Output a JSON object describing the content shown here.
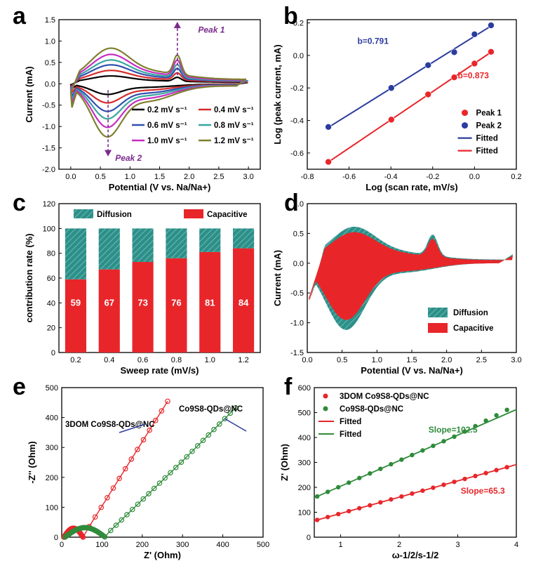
{
  "colors": {
    "red": "#e8262a",
    "blue": "#2b3c9e",
    "teal": "#2f8f88",
    "green": "#2e8b3a",
    "purple": "#7a2a8c",
    "olive": "#7f8030",
    "black": "#000000",
    "cyan": "#3aa6a0",
    "magenta": "#c72dc1",
    "darkred": "#d62c2c",
    "darkblue": "#3050b0"
  },
  "panels": {
    "a": "a",
    "b": "b",
    "c": "c",
    "d": "d",
    "e": "e",
    "f": "f"
  },
  "chart_data": [
    {
      "id": "a",
      "type": "line",
      "xlabel": "Potential (V vs. Na/Na+)",
      "ylabel": "Current (mA)",
      "xlim": [
        -0.2,
        3.2
      ],
      "ylim": [
        -2.0,
        1.5
      ],
      "xticks": [
        "0.0",
        "0.5",
        "1.0",
        "1.5",
        "2.0",
        "2.5",
        "3.0"
      ],
      "yticks": [
        "-2.0",
        "-1.5",
        "-1.0",
        "-0.5",
        "0.0",
        "0.5",
        "1.0",
        "1.5"
      ],
      "series": [
        {
          "name": "0.2 mV s⁻¹",
          "scale": 0.2,
          "color": "#000000"
        },
        {
          "name": "0.4 mV s⁻¹",
          "scale": 0.36,
          "color": "#d62c2c"
        },
        {
          "name": "0.6 mV s⁻¹",
          "scale": 0.52,
          "color": "#3050b0"
        },
        {
          "name": "0.8 mV s⁻¹",
          "scale": 0.66,
          "color": "#3aa6a0"
        },
        {
          "name": "1.0 mV s⁻¹",
          "scale": 0.82,
          "color": "#c72dc1"
        },
        {
          "name": "1.2 mV s⁻¹",
          "scale": 1.0,
          "color": "#7f8030"
        }
      ],
      "annotations": {
        "peak1": "Peak 1",
        "peak2": "Peak 2"
      }
    },
    {
      "id": "b",
      "type": "scatter",
      "xlabel": "Log (scan rate, mV/s)",
      "ylabel": "Log (peak current, mA)",
      "xlim": [
        -0.8,
        0.2
      ],
      "ylim": [
        -0.7,
        0.22
      ],
      "xticks": [
        "-0.8",
        "-0.6",
        "-0.4",
        "-0.2",
        "0.0",
        "0.2"
      ],
      "yticks": [
        "-0.6",
        "-0.4",
        "-0.2",
        "0.0",
        "0.2"
      ],
      "series": [
        {
          "name": "Peak 1",
          "x": [
            -0.699,
            -0.398,
            -0.222,
            -0.097,
            0.0,
            0.079
          ],
          "y": [
            -0.655,
            -0.395,
            -0.24,
            -0.135,
            -0.05,
            0.022
          ]
        },
        {
          "name": "Peak 2",
          "x": [
            -0.699,
            -0.398,
            -0.222,
            -0.097,
            0.0,
            0.079
          ],
          "y": [
            -0.44,
            -0.2,
            -0.06,
            0.02,
            0.13,
            0.185
          ]
        }
      ],
      "fitted": [
        {
          "name": "Fitted",
          "slope": 0.791,
          "series": "Peak 2"
        },
        {
          "name": "Fitted",
          "slope": 0.873,
          "series": "Peak 1"
        }
      ],
      "labels": {
        "b2": "b=0.791",
        "b1": "b=0.873"
      }
    },
    {
      "id": "c",
      "type": "bar",
      "xlabel": "Sweep rate (mV/s)",
      "ylabel": "contribution rate (%)",
      "ylim": [
        0,
        120
      ],
      "categories": [
        "0.2",
        "0.4",
        "0.6",
        "0.8",
        "1.0",
        "1.2"
      ],
      "yticks": [
        "0",
        "20",
        "40",
        "60",
        "80",
        "100",
        "120"
      ],
      "series": [
        {
          "name": "Capacitive",
          "values": [
            59,
            67,
            73,
            76,
            81,
            84
          ]
        },
        {
          "name": "Diffusion",
          "values": [
            41,
            33,
            27,
            24,
            19,
            16
          ]
        }
      ]
    },
    {
      "id": "d",
      "type": "area",
      "xlabel": "Potential (V vs. Na/Na+)",
      "ylabel": "Current (mA)",
      "xlim": [
        0,
        3.0
      ],
      "ylim": [
        -1.5,
        1.0
      ],
      "xticks": [
        "0.0",
        "0.5",
        "1.0",
        "1.5",
        "2.0",
        "2.5",
        "3.0"
      ],
      "yticks": [
        "-1.5",
        "-1.0",
        "-0.5",
        "0.0",
        "0.5",
        "1.0"
      ],
      "series": [
        {
          "name": "Diffusion"
        },
        {
          "name": "Capacitive"
        }
      ]
    },
    {
      "id": "e",
      "type": "scatter",
      "xlabel": "Z' (Ohm)",
      "ylabel": "-Z'' (Ohm)",
      "xlim": [
        0,
        500
      ],
      "ylim": [
        0,
        500
      ],
      "xticks": [
        "0",
        "100",
        "200",
        "300",
        "400",
        "500"
      ],
      "yticks": [
        "0",
        "100",
        "200",
        "300",
        "400",
        "500"
      ],
      "series": [
        {
          "name": "3DOM Co9S8-QDs@NC"
        },
        {
          "name": "Co9S8-QDs@NC"
        }
      ]
    },
    {
      "id": "f",
      "type": "scatter",
      "xlabel": "ω-1/2/s-1/2",
      "ylabel": "Z' (Ohm)",
      "xlim": [
        0.55,
        4.0
      ],
      "ylim": [
        0,
        600
      ],
      "xticks": [
        "1",
        "2",
        "3",
        "4"
      ],
      "yticks": [
        "0",
        "100",
        "200",
        "300",
        "400",
        "500",
        "600"
      ],
      "series": [
        {
          "name": "3DOM Co9S8-QDs@NC",
          "slope": 65.3
        },
        {
          "name": "Co9S8-QDs@NC",
          "slope": 102.5
        }
      ],
      "fitted": [
        "Fitted",
        "Fitted"
      ],
      "labels": {
        "s1": "Slope=102.5",
        "s2": "Slope=65.3"
      }
    }
  ]
}
